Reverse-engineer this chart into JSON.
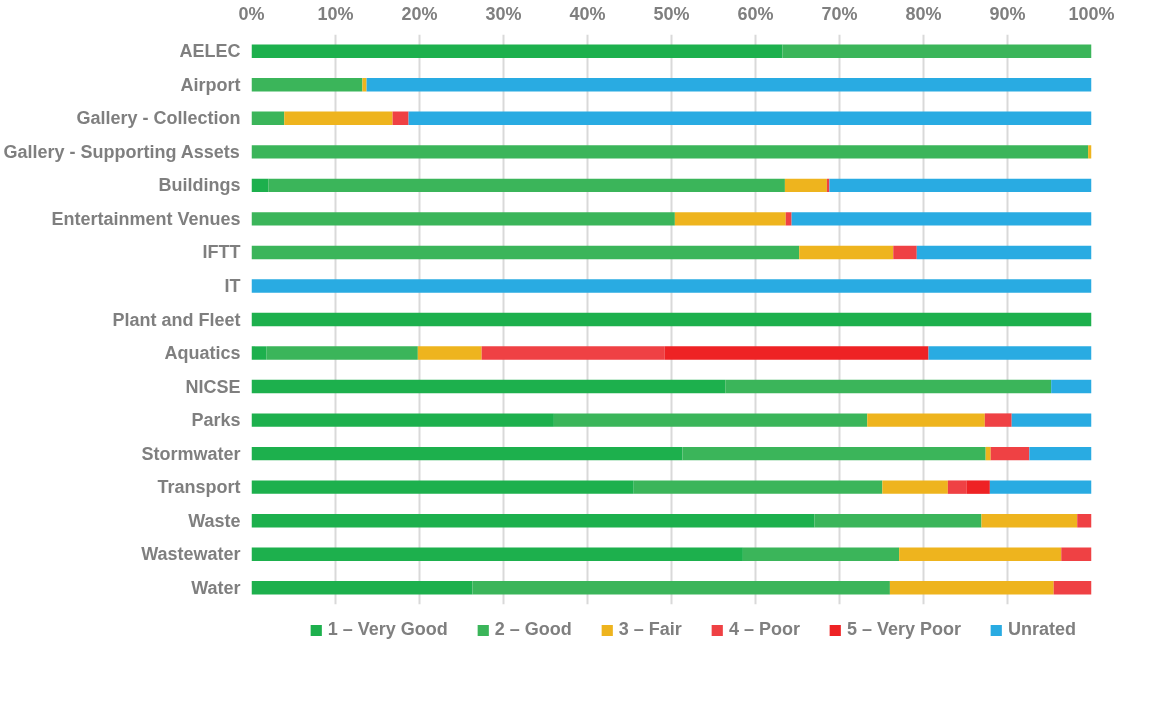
{
  "chart_data": {
    "type": "bar",
    "orientation": "horizontal",
    "stacked": true,
    "categories": [
      "AELEC",
      "Airport",
      "Gallery - Collection",
      "Gallery - Supporting Assets",
      "Buildings",
      "Entertainment Venues",
      "IFTT",
      "IT",
      "Plant and Fleet",
      "Aquatics",
      "NICSE",
      "Parks",
      "Stormwater",
      "Transport",
      "Waste",
      "Wastewater",
      "Water"
    ],
    "series": [
      {
        "name": "1 – Very Good",
        "color": "#1db04d",
        "values": [
          63.2,
          0,
          0,
          0,
          2.0,
          0,
          0,
          0,
          100,
          1.8,
          56.4,
          36.0,
          51.3,
          45.5,
          67.0,
          58.5,
          26.3
        ]
      },
      {
        "name": "2 – Good",
        "color": "#3bb55a",
        "values": [
          36.8,
          13.2,
          3.9,
          99.6,
          61.5,
          50.4,
          65.2,
          0,
          0,
          18.0,
          38.8,
          37.3,
          36.1,
          29.6,
          19.9,
          18.6,
          49.7
        ]
      },
      {
        "name": "3 – Fair",
        "color": "#eeb41e",
        "values": [
          0,
          0.5,
          12.9,
          0.4,
          5.0,
          13.2,
          11.2,
          0,
          0,
          7.6,
          0,
          14.0,
          0.6,
          7.8,
          11.4,
          19.3,
          19.5
        ]
      },
      {
        "name": "4 – Poor",
        "color": "#ef4144",
        "values": [
          0,
          0,
          1.9,
          0,
          0.3,
          0.7,
          2.8,
          0,
          0,
          21.8,
          0,
          3.2,
          4.6,
          2.2,
          1.7,
          3.6,
          4.5
        ]
      },
      {
        "name": "5 – Very Poor",
        "color": "#ee2224",
        "values": [
          0,
          0,
          0,
          0,
          0,
          0,
          0,
          0,
          0,
          31.4,
          0,
          0,
          0,
          2.8,
          0,
          0,
          0
        ]
      },
      {
        "name": "Unrated",
        "color": "#29abe2",
        "values": [
          0,
          86.3,
          81.3,
          0,
          31.2,
          35.7,
          20.8,
          100,
          0,
          19.4,
          4.8,
          9.5,
          7.4,
          12.1,
          0,
          0,
          0
        ]
      }
    ],
    "xlim": [
      0,
      100
    ],
    "xticks": [
      {
        "value": 0,
        "label": "0%"
      },
      {
        "value": 10,
        "label": "10%"
      },
      {
        "value": 20,
        "label": "20%"
      },
      {
        "value": 30,
        "label": "30%"
      },
      {
        "value": 40,
        "label": "40%"
      },
      {
        "value": 50,
        "label": "50%"
      },
      {
        "value": 60,
        "label": "60%"
      },
      {
        "value": 70,
        "label": "70%"
      },
      {
        "value": 80,
        "label": "80%"
      },
      {
        "value": 90,
        "label": "90%"
      },
      {
        "value": 100,
        "label": "100%"
      }
    ],
    "grid": "x",
    "legend": "bottom"
  }
}
